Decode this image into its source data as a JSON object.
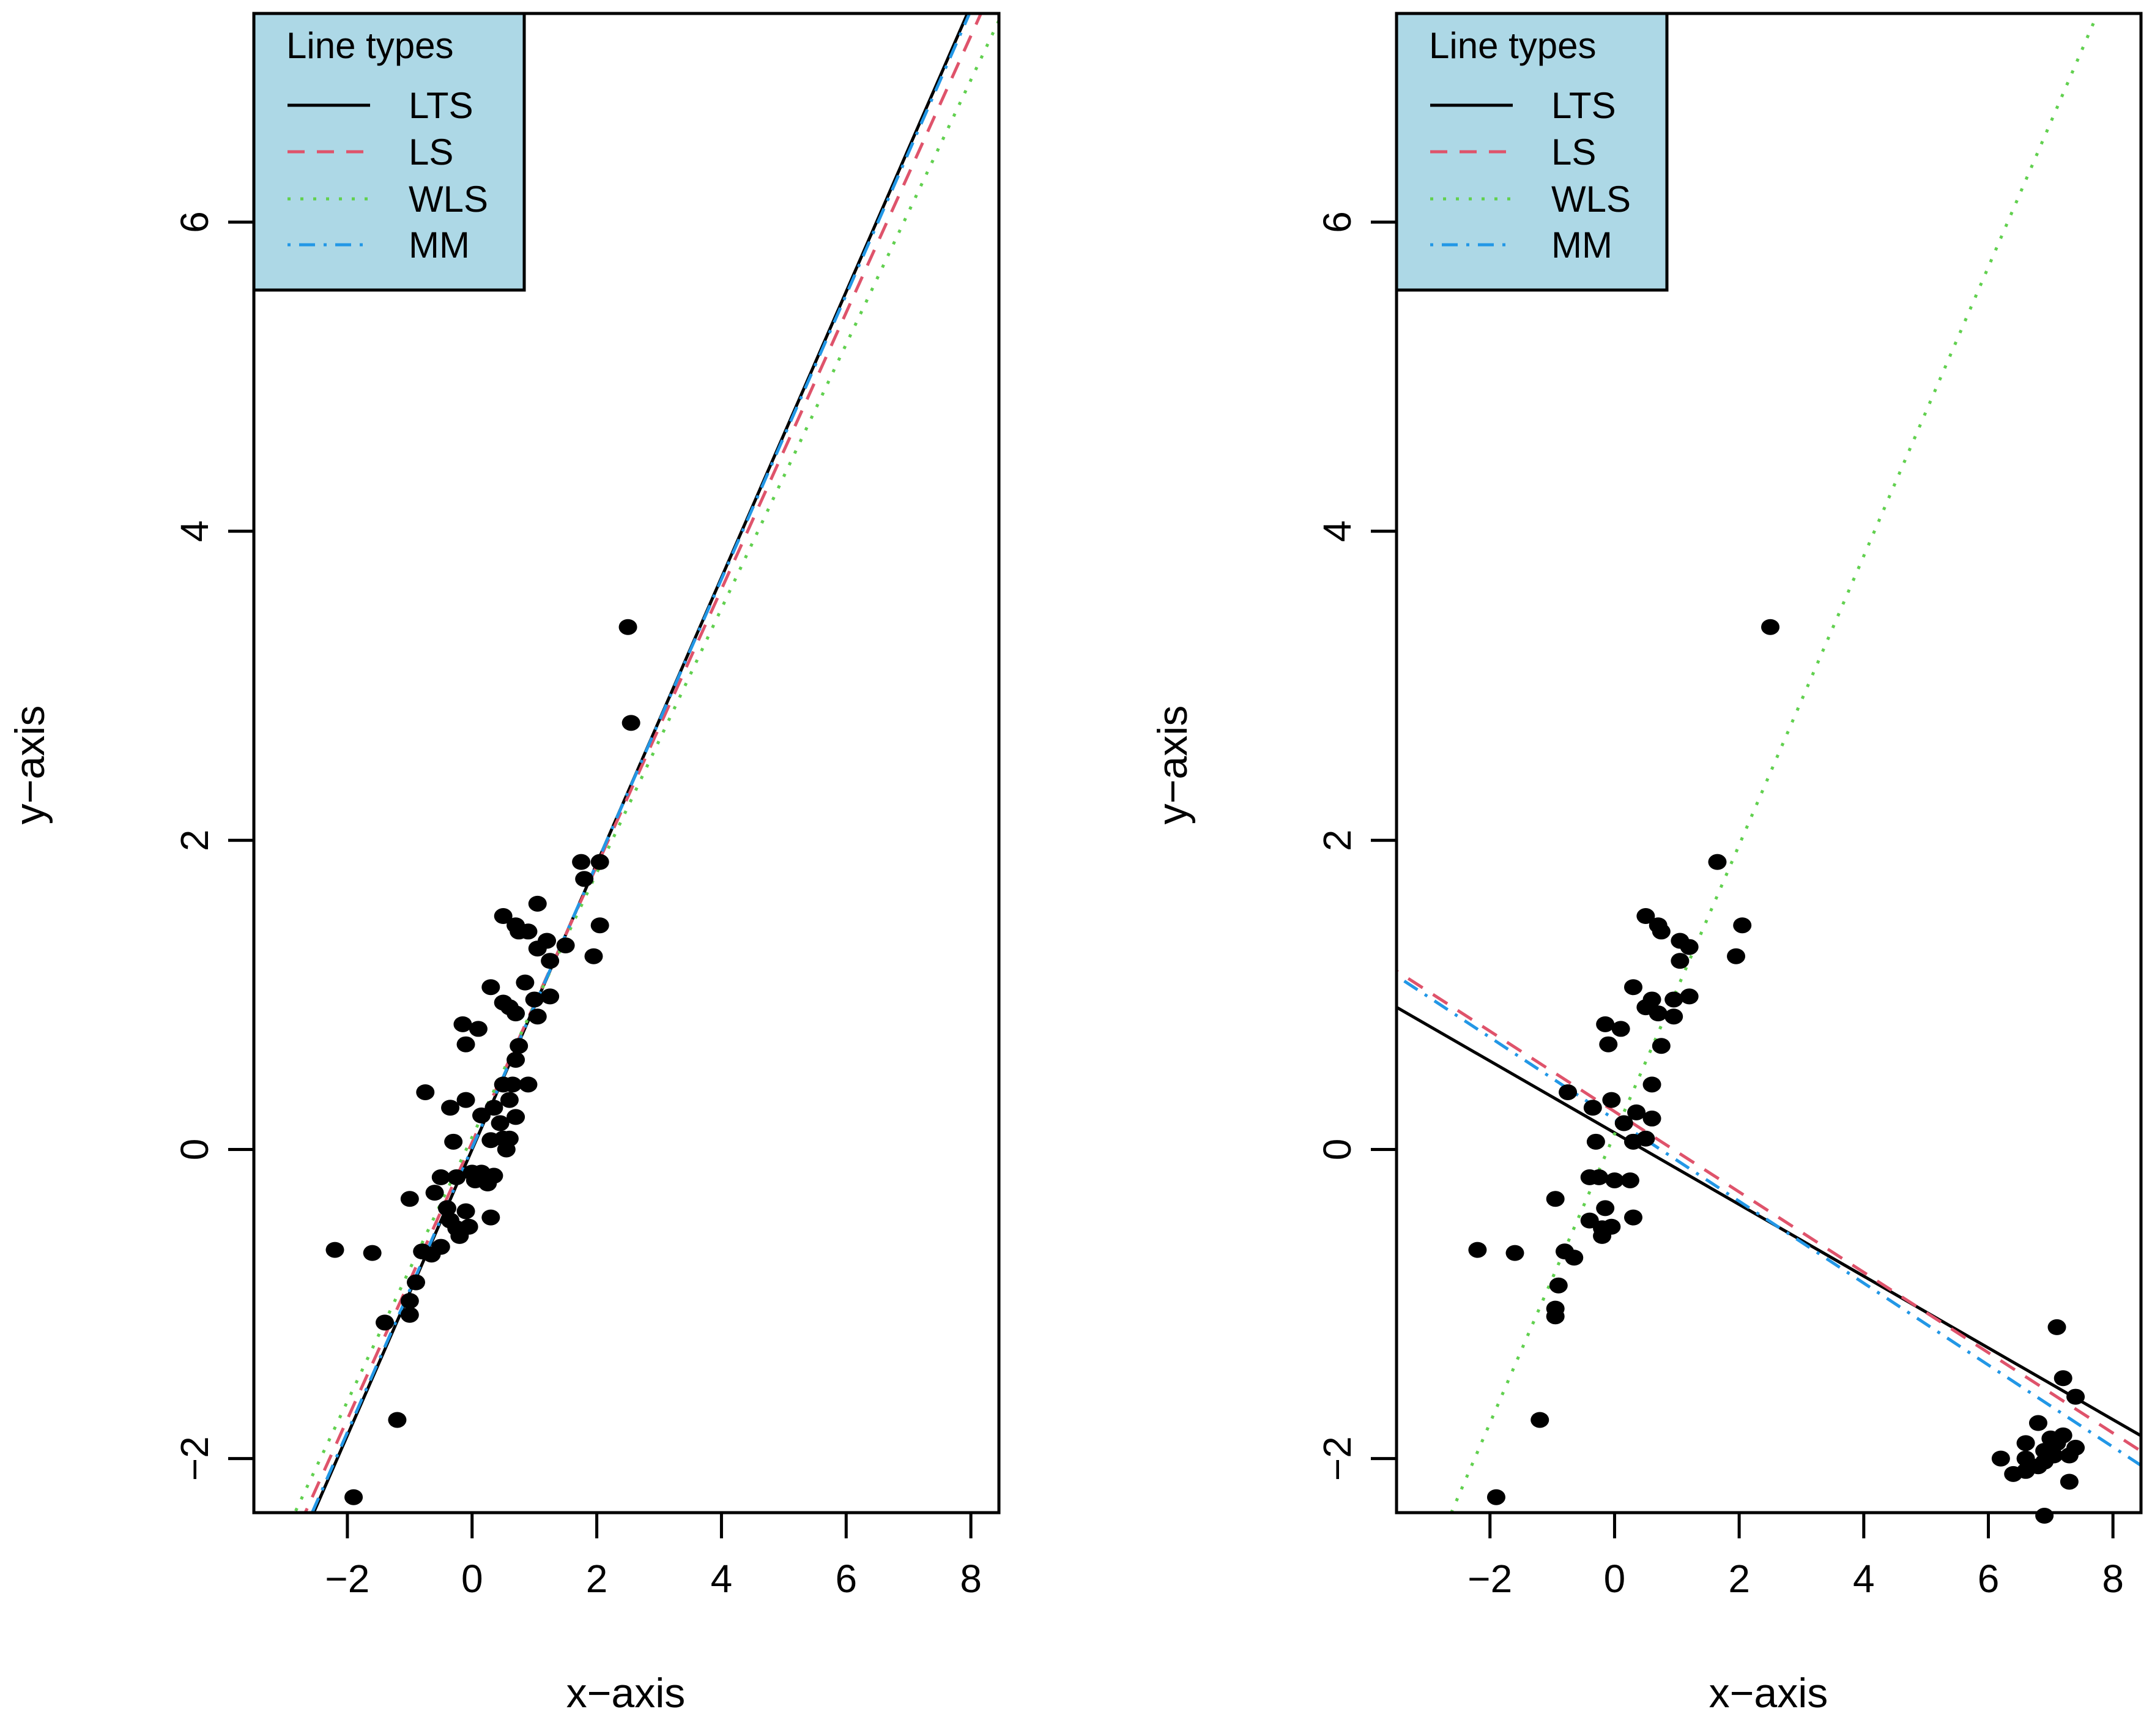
{
  "legend": {
    "title": "Line types",
    "background": "#add8e6",
    "entries": [
      {
        "key": "LTS",
        "label": "LTS",
        "color": "#000000",
        "dash": "solid"
      },
      {
        "key": "LS",
        "label": "LS",
        "color": "#df536b",
        "dash": "dashed"
      },
      {
        "key": "WLS",
        "label": "WLS",
        "color": "#61d04f",
        "dash": "dotted"
      },
      {
        "key": "MM",
        "label": "MM",
        "color": "#2297e6",
        "dash": "dotdash"
      }
    ]
  },
  "chart_data": [
    {
      "type": "scatter",
      "title": "",
      "xlabel": "x−axis",
      "ylabel": "y−axis",
      "xlim": [
        -3.5,
        8.45
      ],
      "ylim": [
        -2.35,
        7.35
      ],
      "xticks": [
        -2,
        0,
        2,
        4,
        6,
        8
      ],
      "yticks": [
        -2,
        0,
        2,
        4,
        6
      ],
      "xtick_labels": [
        "−2",
        "0",
        "2",
        "4",
        "6",
        "8"
      ],
      "ytick_labels": [
        "−2",
        "0",
        "2",
        "4",
        "6"
      ],
      "points": [
        [
          2.5,
          3.38
        ],
        [
          2.55,
          2.76
        ],
        [
          1.75,
          1.86
        ],
        [
          2.05,
          1.86
        ],
        [
          1.8,
          1.75
        ],
        [
          2.05,
          1.45
        ],
        [
          1.95,
          1.25
        ],
        [
          1.05,
          1.59
        ],
        [
          0.5,
          1.51
        ],
        [
          0.7,
          1.45
        ],
        [
          0.75,
          1.41
        ],
        [
          0.9,
          1.41
        ],
        [
          1.2,
          1.35
        ],
        [
          1.05,
          1.3
        ],
        [
          1.5,
          1.32
        ],
        [
          1.25,
          1.22
        ],
        [
          0.3,
          1.05
        ],
        [
          0.5,
          0.95
        ],
        [
          0.6,
          0.92
        ],
        [
          0.7,
          0.88
        ],
        [
          0.85,
          1.08
        ],
        [
          1.0,
          0.97
        ],
        [
          1.25,
          0.99
        ],
        [
          1.05,
          0.86
        ],
        [
          -0.15,
          0.81
        ],
        [
          0.1,
          0.78
        ],
        [
          -0.1,
          0.68
        ],
        [
          0.75,
          0.67
        ],
        [
          0.7,
          0.58
        ],
        [
          0.5,
          0.42
        ],
        [
          0.65,
          0.42
        ],
        [
          0.9,
          0.42
        ],
        [
          -0.75,
          0.37
        ],
        [
          -0.35,
          0.27
        ],
        [
          -0.1,
          0.32
        ],
        [
          0.35,
          0.27
        ],
        [
          0.6,
          0.32
        ],
        [
          0.15,
          0.22
        ],
        [
          0.45,
          0.17
        ],
        [
          0.7,
          0.21
        ],
        [
          0.5,
          0.07
        ],
        [
          0.6,
          0.07
        ],
        [
          -0.3,
          0.05
        ],
        [
          0.3,
          0.06
        ],
        [
          0.55,
          0.0
        ],
        [
          -0.5,
          -0.18
        ],
        [
          -0.25,
          -0.18
        ],
        [
          0.0,
          -0.15
        ],
        [
          0.05,
          -0.2
        ],
        [
          0.15,
          -0.15
        ],
        [
          0.35,
          -0.17
        ],
        [
          0.25,
          -0.22
        ],
        [
          -0.6,
          -0.28
        ],
        [
          -1.0,
          -0.32
        ],
        [
          -0.4,
          -0.38
        ],
        [
          -0.1,
          -0.4
        ],
        [
          0.3,
          -0.44
        ],
        [
          -0.35,
          -0.46
        ],
        [
          -0.25,
          -0.51
        ],
        [
          -0.05,
          -0.5
        ],
        [
          -0.2,
          -0.56
        ],
        [
          -0.5,
          -0.63
        ],
        [
          -0.65,
          -0.68
        ],
        [
          -2.2,
          -0.65
        ],
        [
          -1.6,
          -0.67
        ],
        [
          -0.8,
          -0.66
        ],
        [
          -0.9,
          -0.86
        ],
        [
          -1.0,
          -0.98
        ],
        [
          -1.0,
          -1.07
        ],
        [
          -1.4,
          -1.12
        ],
        [
          -1.2,
          -1.75
        ],
        [
          -1.9,
          -2.25
        ]
      ],
      "lines": [
        {
          "name": "LTS",
          "intercept": 0.0,
          "slope": 0.925
        },
        {
          "name": "LS",
          "intercept": 0.045,
          "slope": 0.895
        },
        {
          "name": "WLS",
          "intercept": 0.08,
          "slope": 0.855
        },
        {
          "name": "MM",
          "intercept": 0.01,
          "slope": 0.92
        }
      ]
    },
    {
      "type": "scatter",
      "title": "",
      "xlabel": "x−axis",
      "ylabel": "y−axis",
      "xlim": [
        -3.5,
        8.45
      ],
      "ylim": [
        -2.35,
        7.35
      ],
      "xticks": [
        -2,
        0,
        2,
        4,
        6,
        8
      ],
      "yticks": [
        -2,
        0,
        2,
        4,
        6
      ],
      "xtick_labels": [
        "−2",
        "0",
        "2",
        "4",
        "6",
        "8"
      ],
      "ytick_labels": [
        "−2",
        "0",
        "2",
        "4",
        "6"
      ],
      "points": [
        [
          2.5,
          3.38
        ],
        [
          1.65,
          1.86
        ],
        [
          2.05,
          1.45
        ],
        [
          1.95,
          1.25
        ],
        [
          0.5,
          1.51
        ],
        [
          0.7,
          1.45
        ],
        [
          0.75,
          1.41
        ],
        [
          1.05,
          1.35
        ],
        [
          1.2,
          1.31
        ],
        [
          1.05,
          1.22
        ],
        [
          0.3,
          1.05
        ],
        [
          0.5,
          0.92
        ],
        [
          0.6,
          0.97
        ],
        [
          0.7,
          0.88
        ],
        [
          0.95,
          0.97
        ],
        [
          1.2,
          0.99
        ],
        [
          0.95,
          0.86
        ],
        [
          -0.15,
          0.81
        ],
        [
          0.1,
          0.78
        ],
        [
          -0.1,
          0.68
        ],
        [
          0.75,
          0.67
        ],
        [
          -0.75,
          0.37
        ],
        [
          -0.35,
          0.27
        ],
        [
          -0.05,
          0.32
        ],
        [
          0.35,
          0.24
        ],
        [
          0.6,
          0.42
        ],
        [
          0.6,
          0.2
        ],
        [
          0.15,
          0.17
        ],
        [
          0.3,
          0.05
        ],
        [
          0.5,
          0.07
        ],
        [
          -0.3,
          0.05
        ],
        [
          -0.4,
          -0.18
        ],
        [
          -0.25,
          -0.18
        ],
        [
          0.0,
          -0.2
        ],
        [
          0.25,
          -0.2
        ],
        [
          -0.95,
          -0.32
        ],
        [
          -0.15,
          -0.38
        ],
        [
          -0.4,
          -0.46
        ],
        [
          -0.2,
          -0.51
        ],
        [
          0.3,
          -0.44
        ],
        [
          -0.05,
          -0.5
        ],
        [
          -0.2,
          -0.56
        ],
        [
          -0.8,
          -0.66
        ],
        [
          -0.65,
          -0.7
        ],
        [
          -2.2,
          -0.65
        ],
        [
          -1.6,
          -0.67
        ],
        [
          -0.9,
          -0.88
        ],
        [
          -0.95,
          -1.03
        ],
        [
          -0.95,
          -1.08
        ],
        [
          -1.2,
          -1.75
        ],
        [
          -1.9,
          -2.25
        ],
        [
          7.1,
          -1.15
        ],
        [
          7.2,
          -1.48
        ],
        [
          7.4,
          -1.6
        ],
        [
          6.8,
          -1.77
        ],
        [
          7.0,
          -1.87
        ],
        [
          7.2,
          -1.85
        ],
        [
          7.4,
          -1.93
        ],
        [
          6.6,
          -1.9
        ],
        [
          6.9,
          -1.95
        ],
        [
          7.1,
          -1.9
        ],
        [
          6.2,
          -2.0
        ],
        [
          6.6,
          -2.0
        ],
        [
          6.9,
          -2.02
        ],
        [
          7.05,
          -1.98
        ],
        [
          7.3,
          -1.98
        ],
        [
          6.4,
          -2.1
        ],
        [
          6.6,
          -2.08
        ],
        [
          6.8,
          -2.05
        ],
        [
          7.3,
          -2.15
        ],
        [
          6.9,
          -2.37
        ]
      ],
      "lines": [
        {
          "name": "LTS",
          "intercept": 0.108,
          "slope": -0.232
        },
        {
          "name": "LS",
          "intercept": 0.245,
          "slope": -0.26
        },
        {
          "name": "WLS",
          "intercept": 0.1,
          "slope": 0.935
        },
        {
          "name": "MM",
          "intercept": 0.195,
          "slope": -0.265
        }
      ]
    }
  ]
}
